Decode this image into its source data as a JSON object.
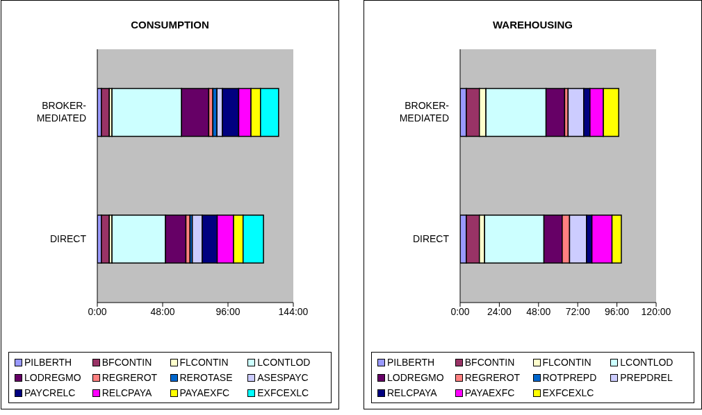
{
  "chart_data": [
    {
      "type": "bar",
      "title": "CONSUMPTION",
      "orientation": "horizontal",
      "stacked": true,
      "categories": [
        "BROKER-MEDIATED",
        "DIRECT"
      ],
      "xlim": [
        0,
        144
      ],
      "xticks": [
        {
          "value": 0,
          "label": "0:00"
        },
        {
          "value": 48,
          "label": "48:00"
        },
        {
          "value": 96,
          "label": "96:00"
        },
        {
          "value": 144,
          "label": "144:00"
        }
      ],
      "legend": "bottom",
      "grid": false,
      "series": [
        {
          "name": "PILBERTH",
          "color": "#9999ff",
          "values": [
            3,
            3
          ]
        },
        {
          "name": "BFCONTIN",
          "color": "#993366",
          "values": [
            5.8,
            5.8
          ]
        },
        {
          "name": "FLCONTIN",
          "color": "#ffffcc",
          "values": [
            2,
            2
          ]
        },
        {
          "name": "LCONTLOD",
          "color": "#ccffff",
          "values": [
            51.1,
            39.3
          ]
        },
        {
          "name": "LODREGMO",
          "color": "#660066",
          "values": [
            20,
            15
          ]
        },
        {
          "name": "REGREROT",
          "color": "#ff8080",
          "values": [
            3,
            3
          ]
        },
        {
          "name": "REROTASE",
          "color": "#0066cc",
          "values": [
            3,
            1.7
          ]
        },
        {
          "name": "ASESPAYC",
          "color": "#ccccff",
          "values": [
            4,
            7.3
          ]
        },
        {
          "name": "PAYCRELC",
          "color": "#000080",
          "values": [
            12,
            11
          ]
        },
        {
          "name": "RELCPAYA",
          "color": "#ff00ff",
          "values": [
            9,
            12
          ]
        },
        {
          "name": "PAYAEXFC",
          "color": "#ffff00",
          "values": [
            7,
            7
          ]
        },
        {
          "name": "EXFCEXLC",
          "color": "#00ffff",
          "values": [
            13.3,
            15
          ]
        }
      ]
    },
    {
      "type": "bar",
      "title": "WAREHOUSING",
      "orientation": "horizontal",
      "stacked": true,
      "categories": [
        "BROKER-MEDIATED",
        "DIRECT"
      ],
      "xlim": [
        0,
        120
      ],
      "xticks": [
        {
          "value": 0,
          "label": "0:00"
        },
        {
          "value": 24,
          "label": "24:00"
        },
        {
          "value": 48,
          "label": "48:00"
        },
        {
          "value": 72,
          "label": "72:00"
        },
        {
          "value": 96,
          "label": "96:00"
        },
        {
          "value": 120,
          "label": "120:00"
        }
      ],
      "legend": "bottom",
      "grid": false,
      "series": [
        {
          "name": "PILBERTH",
          "color": "#9999ff",
          "values": [
            3.8,
            3.8
          ]
        },
        {
          "name": "BFCONTIN",
          "color": "#993366",
          "values": [
            8,
            8
          ]
        },
        {
          "name": "FLCONTIN",
          "color": "#ffffcc",
          "values": [
            4,
            3.2
          ]
        },
        {
          "name": "LCONTLOD",
          "color": "#ccffff",
          "values": [
            36.8,
            36.3
          ]
        },
        {
          "name": "LODREGMO",
          "color": "#660066",
          "values": [
            11.4,
            11.2
          ]
        },
        {
          "name": "REGREROT",
          "color": "#ff8080",
          "values": [
            2.1,
            4.5
          ]
        },
        {
          "name": "ROTPREPD",
          "color": "#0066cc",
          "values": [
            0,
            0
          ]
        },
        {
          "name": "PREPDREL",
          "color": "#ccccff",
          "values": [
            9.6,
            10.4
          ]
        },
        {
          "name": "RELCPAYA",
          "color": "#000080",
          "values": [
            3.8,
            3.3
          ]
        },
        {
          "name": "PAYAEXFC",
          "color": "#ff00ff",
          "values": [
            8.2,
            12.3
          ]
        },
        {
          "name": "EXFCEXLC",
          "color": "#ffff00",
          "values": [
            9.4,
            5.7
          ]
        }
      ]
    }
  ]
}
